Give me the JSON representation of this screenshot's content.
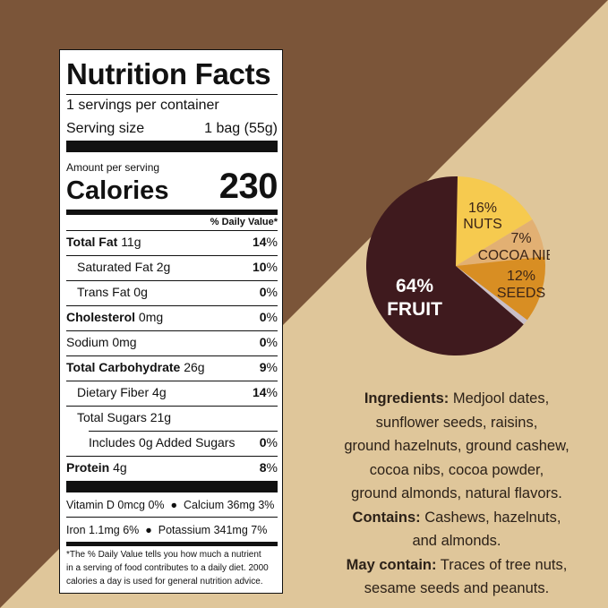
{
  "colors": {
    "bg_dark": "#7b5539",
    "bg_light": "#dfc69a",
    "fruit": "#3f1a1e",
    "nuts": "#f6ca4f",
    "cocoa": "#e2b073",
    "seeds": "#d88e23",
    "other": "#c9bfc8"
  },
  "nutrition": {
    "title": "Nutrition Facts",
    "servings_per_container": "1 servings per container",
    "serving_size_label": "Serving size",
    "serving_size_value": "1 bag (55g)",
    "amount_per_serving": "Amount per serving",
    "calories_label": "Calories",
    "calories_value": "230",
    "daily_value_header": "% Daily Value*",
    "rows": [
      {
        "label": "Total Fat",
        "amount": "11g",
        "dv": "14"
      },
      {
        "label": "Saturated Fat",
        "amount": "2g",
        "dv": "10"
      },
      {
        "label": "Trans Fat",
        "amount": "0g",
        "dv": ""
      },
      {
        "label": "Cholesterol",
        "amount": "0mg",
        "dv": "0"
      },
      {
        "label": "Sodium",
        "amount": "0mg",
        "dv": "0"
      },
      {
        "label": "Total Carbohydrate",
        "amount": "26g",
        "dv": "9"
      },
      {
        "label": "Dietary Fiber",
        "amount": "4g",
        "dv": "14"
      },
      {
        "label": "Total Sugars",
        "amount": "21g",
        "dv": ""
      },
      {
        "label": "Includes 0g Added Sugars",
        "amount": "",
        "dv": "0"
      },
      {
        "label": "Protein",
        "amount": "4g",
        "dv": "8"
      }
    ],
    "trans_fat_dv": "0",
    "pct": "%",
    "vitamin_line": "Vitamin D 0mcg 0%  ●  Calcium 36mg 3%",
    "mineral_line": "Iron 1.1mg 6%  ●  Potassium 341mg 7%",
    "footnote_1": "*The % Daily Value tells you how much a nutrient",
    "footnote_2": "in a serving of food contributes to a daily diet. 2000",
    "footnote_3": "calories a day is used for general nutrition advice."
  },
  "chart_data": {
    "type": "pie",
    "series": [
      {
        "label": "FRUIT",
        "value": 64,
        "value_text": "64%",
        "color": "#3f1a1e"
      },
      {
        "label": "NUTS",
        "value": 16,
        "value_text": "16%",
        "color": "#f6ca4f"
      },
      {
        "label": "COCOA NIBS",
        "value": 7,
        "value_text": "7%",
        "color": "#e2b073"
      },
      {
        "label": "SEEDS",
        "value": 12,
        "value_text": "12%",
        "color": "#d88e23"
      },
      {
        "label": "",
        "value": 1,
        "value_text": "",
        "color": "#c9bfc8"
      }
    ]
  },
  "ingredients": {
    "ingredients_label": "Ingredients:",
    "line1": " Medjool dates,",
    "line2": "sunflower seeds, raisins,",
    "line3": "ground hazelnuts, ground cashew,",
    "line4": "cocoa nibs, cocoa powder,",
    "line5": "ground almonds, natural flavors.",
    "contains_label": "Contains:",
    "contains_line1": " Cashews, hazelnuts,",
    "contains_line2": "and almonds.",
    "may_contain_label": "May contain:",
    "may_line1": " Traces of tree nuts,",
    "may_line2": "sesame seeds and peanuts."
  }
}
